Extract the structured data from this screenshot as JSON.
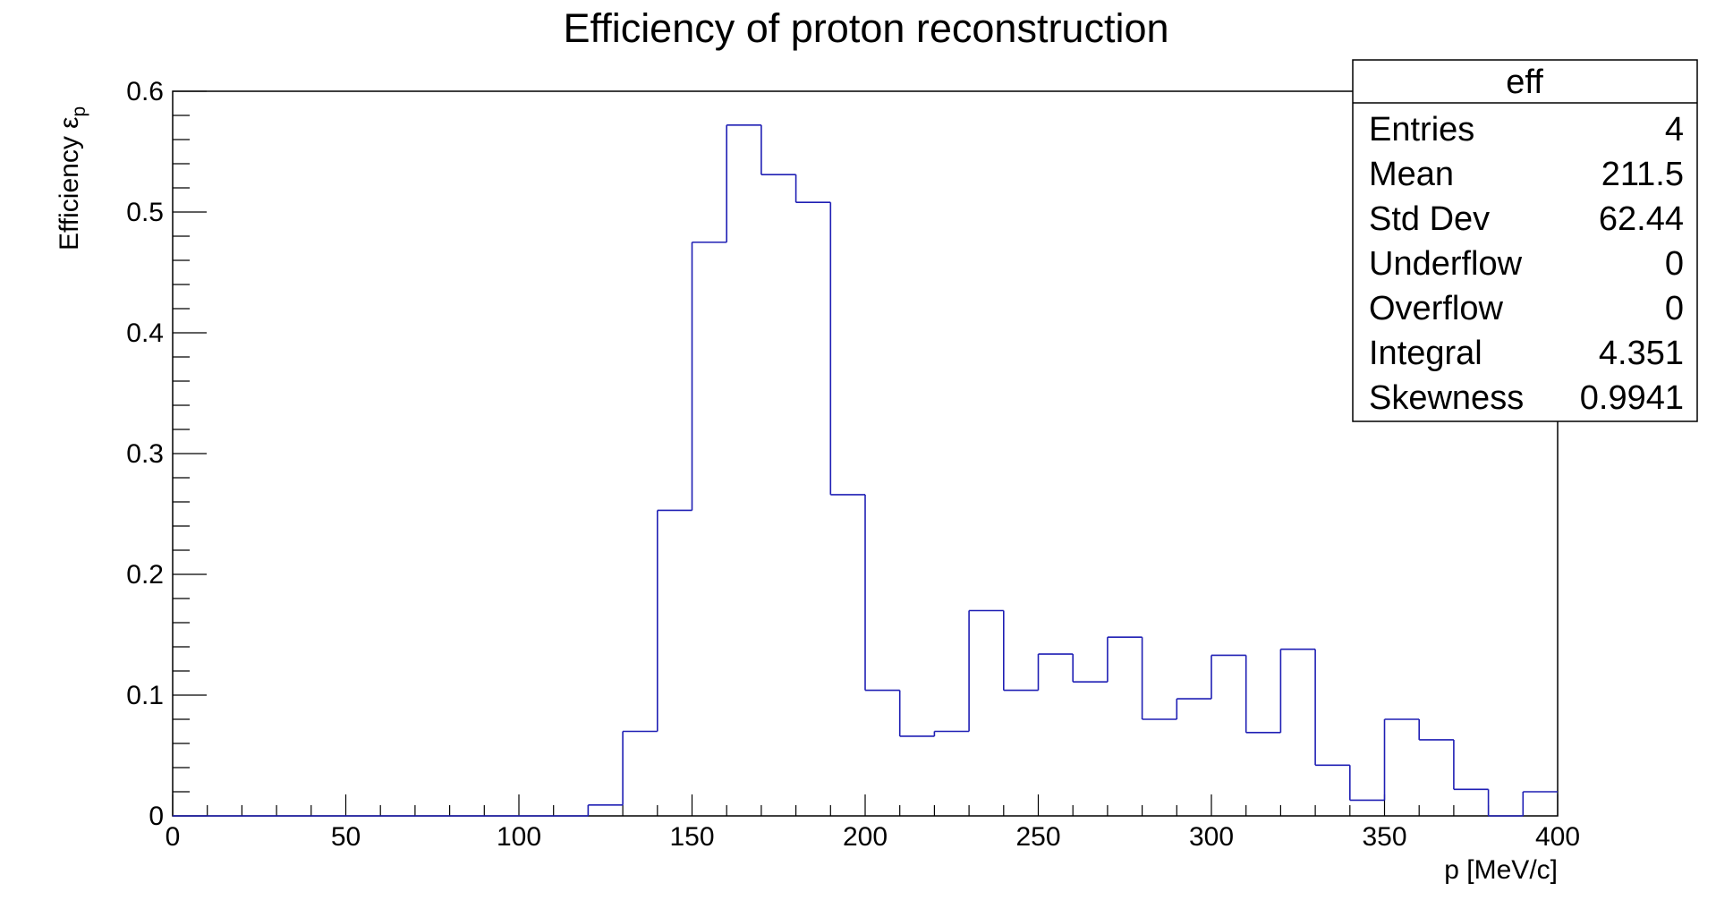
{
  "chart_data": {
    "type": "histogram",
    "title": "Efficiency of proton reconstruction",
    "xlabel": "p [MeV/c]",
    "ylabel": "Efficiency ε",
    "ylabel_subscript": "p",
    "xlim": [
      0,
      400
    ],
    "ylim": [
      0,
      0.6
    ],
    "x_ticks": [
      "0",
      "50",
      "100",
      "150",
      "200",
      "250",
      "300",
      "350",
      "400"
    ],
    "y_ticks": [
      "0",
      "0.1",
      "0.2",
      "0.3",
      "0.4",
      "0.5",
      "0.6"
    ],
    "bin_edges": [
      0,
      10,
      20,
      30,
      40,
      50,
      60,
      70,
      80,
      90,
      100,
      110,
      120,
      130,
      140,
      150,
      160,
      170,
      180,
      190,
      200,
      210,
      220,
      230,
      240,
      250,
      260,
      270,
      280,
      290,
      300,
      310,
      320,
      330,
      340,
      350,
      360,
      370,
      380,
      390,
      400
    ],
    "values": [
      0,
      0,
      0,
      0,
      0,
      0,
      0,
      0,
      0,
      0,
      0,
      0,
      0.009,
      0.07,
      0.253,
      0.475,
      0.572,
      0.531,
      0.508,
      0.266,
      0.104,
      0.066,
      0.07,
      0.17,
      0.104,
      0.134,
      0.111,
      0.148,
      0.08,
      0.097,
      0.133,
      0.069,
      0.138,
      0.042,
      0.013,
      0.08,
      0.063,
      0.022,
      0,
      0.02
    ],
    "line_color": "#1f1fb4",
    "grid": false,
    "legend": "none",
    "stats_box": {
      "title": "eff",
      "placement": "top-right",
      "rows": [
        {
          "label": "Entries",
          "value": "4"
        },
        {
          "label": "Mean",
          "value": "211.5"
        },
        {
          "label": "Std Dev",
          "value": "62.44"
        },
        {
          "label": "Underflow",
          "value": "0"
        },
        {
          "label": "Overflow",
          "value": "0"
        },
        {
          "label": "Integral",
          "value": "4.351"
        },
        {
          "label": "Skewness",
          "value": "0.9941"
        }
      ]
    }
  }
}
